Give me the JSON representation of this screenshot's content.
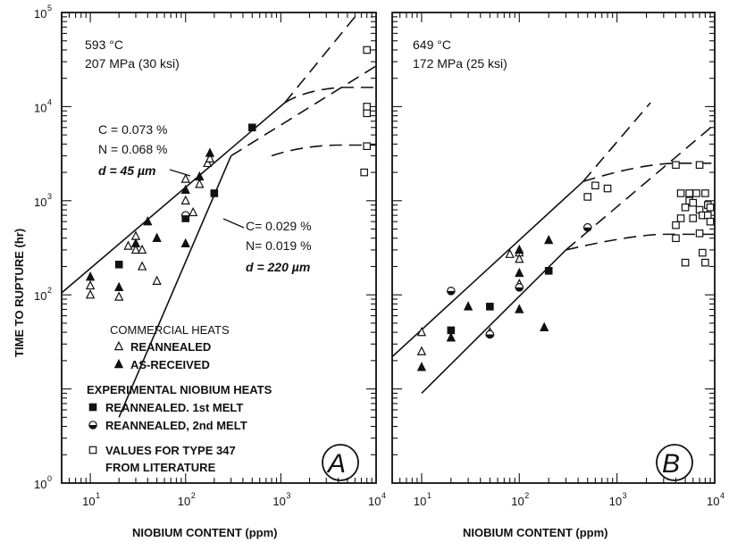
{
  "chart_data": [
    {
      "type": "scatter",
      "panel": "A",
      "panel_letter": "A",
      "condition_temp": "593 °C",
      "condition_stress": "207 MPa (30 ksi)",
      "xlabel": "NIOBIUM CONTENT (ppm)",
      "ylabel": "TIME TO RUPTURE (hr)",
      "x_scale": "log",
      "y_scale": "log",
      "xlim": [
        5,
        10000
      ],
      "ylim": [
        1,
        100000
      ],
      "x_ticks": [
        {
          "base": "10",
          "exp": "1",
          "value": 10
        },
        {
          "base": "10",
          "exp": "2",
          "value": 100
        },
        {
          "base": "10",
          "exp": "3",
          "value": 1000
        },
        {
          "base": "10",
          "exp": "4",
          "value": 10000
        }
      ],
      "y_ticks": [
        {
          "base": "10",
          "exp": "0",
          "value": 1
        },
        {
          "base": "10",
          "exp": "2",
          "value": 100
        },
        {
          "base": "10",
          "exp": "3",
          "value": 1000
        },
        {
          "base": "10",
          "exp": "4",
          "value": 10000
        },
        {
          "base": "10",
          "exp": "5",
          "value": 100000
        }
      ],
      "annotation_upper": [
        "C = 0.073 %",
        "N = 0.068 %",
        "d = 45 µm"
      ],
      "annotation_lower": [
        "C= 0.029 %",
        "N= 0.019 %",
        "d = 220 µm"
      ],
      "trend_lines": [
        {
          "solid": [
            [
              5,
              105
            ],
            [
              1100,
              11000
            ]
          ],
          "dashed": [
            [
              1100,
              11000
            ],
            [
              6000,
              90000
            ]
          ],
          "dashed_plateau": [
            [
              1100,
              11000
            ],
            [
              1800,
              15000
            ],
            [
              10000,
              16000
            ]
          ]
        },
        {
          "dashed": [
            [
              300,
              3000
            ],
            [
              10000,
              27000
            ]
          ],
          "solid": [
            [
              20,
              5
            ],
            [
              300,
              3000
            ]
          ],
          "dashed_plateau": [
            [
              800,
              3000
            ],
            [
              1600,
              3800
            ],
            [
              10000,
              3900
            ]
          ]
        }
      ],
      "series": [
        {
          "name": "REANNEALED",
          "group": "COMMERCIAL HEATS",
          "marker": "open-triangle",
          "points": [
            [
              10,
              125
            ],
            [
              10,
              100
            ],
            [
              20,
              95
            ],
            [
              25,
              330
            ],
            [
              30,
              420
            ],
            [
              30,
              300
            ],
            [
              35,
              200
            ],
            [
              35,
              300
            ],
            [
              50,
              140
            ],
            [
              100,
              1000
            ],
            [
              100,
              1700
            ],
            [
              120,
              750
            ],
            [
              140,
              1500
            ],
            [
              170,
              2500
            ],
            [
              180,
              2800
            ]
          ]
        },
        {
          "name": "AS-RECEIVED",
          "group": "COMMERCIAL HEATS",
          "marker": "filled-triangle",
          "points": [
            [
              10,
              155
            ],
            [
              20,
              120
            ],
            [
              30,
              350
            ],
            [
              40,
              600
            ],
            [
              50,
              400
            ],
            [
              100,
              350
            ],
            [
              100,
              1300
            ],
            [
              140,
              1800
            ],
            [
              180,
              3200
            ]
          ]
        },
        {
          "name": "REANNEALED. 1st MELT",
          "group": "EXPERIMENTAL NIOBIUM HEATS",
          "marker": "filled-square",
          "points": [
            [
              20,
              210
            ],
            [
              100,
              650
            ],
            [
              200,
              1200
            ],
            [
              500,
              6000
            ]
          ]
        },
        {
          "name": "REANNEALED, 2nd MELT",
          "group": "EXPERIMENTAL NIOBIUM HEATS",
          "marker": "half-circle",
          "points": [
            [
              100,
              700
            ]
          ]
        },
        {
          "name": "VALUES FOR TYPE 347 FROM LITERATURE",
          "group": "",
          "marker": "open-square",
          "points": [
            [
              8000,
              40000
            ],
            [
              8000,
              10000
            ],
            [
              8000,
              8500
            ],
            [
              8000,
              3800
            ],
            [
              7500,
              2000
            ]
          ]
        }
      ]
    },
    {
      "type": "scatter",
      "panel": "B",
      "panel_letter": "B",
      "condition_temp": "649 °C",
      "condition_stress": "172 MPa (25 ksi)",
      "xlabel": "NIOBIUM CONTENT (ppm)",
      "x_scale": "log",
      "y_scale": "log",
      "xlim": [
        5,
        10000
      ],
      "ylim": [
        1,
        100000
      ],
      "x_ticks": [
        {
          "base": "10",
          "exp": "1",
          "value": 10
        },
        {
          "base": "10",
          "exp": "2",
          "value": 100
        },
        {
          "base": "10",
          "exp": "3",
          "value": 1000
        },
        {
          "base": "10",
          "exp": "4",
          "value": 10000
        }
      ],
      "trend_lines": [
        {
          "solid": [
            [
              5,
              22
            ],
            [
              450,
              1600
            ]
          ],
          "dashed": [
            [
              450,
              1600
            ],
            [
              2200,
              11000
            ]
          ],
          "dashed_plateau": [
            [
              450,
              1600
            ],
            [
              1800,
              2500
            ],
            [
              10000,
              2500
            ]
          ]
        },
        {
          "solid": [
            [
              10,
              9
            ],
            [
              300,
              300
            ]
          ],
          "dashed": [
            [
              300,
              300
            ],
            [
              10000,
              6500
            ]
          ],
          "dashed_plateau": [
            [
              300,
              300
            ],
            [
              1200,
              420
            ],
            [
              10000,
              440
            ]
          ]
        }
      ],
      "series": [
        {
          "name": "REANNEALED",
          "marker": "open-triangle",
          "points": [
            [
              10,
              25
            ],
            [
              10,
              40
            ],
            [
              50,
              40
            ],
            [
              80,
              270
            ],
            [
              100,
              280
            ],
            [
              100,
              240
            ],
            [
              100,
              130
            ]
          ]
        },
        {
          "name": "AS-RECEIVED",
          "marker": "filled-triangle",
          "points": [
            [
              10,
              17
            ],
            [
              20,
              35
            ],
            [
              30,
              75
            ],
            [
              100,
              70
            ],
            [
              100,
              170
            ],
            [
              100,
              300
            ],
            [
              200,
              380
            ],
            [
              180,
              45
            ]
          ]
        },
        {
          "name": "REANNEALED. 1st MELT",
          "marker": "filled-square",
          "points": [
            [
              20,
              42
            ],
            [
              50,
              75
            ],
            [
              200,
              180
            ]
          ]
        },
        {
          "name": "REANNEALED, 2nd MELT",
          "marker": "half-circle",
          "points": [
            [
              20,
              110
            ],
            [
              50,
              38
            ],
            [
              100,
              120
            ],
            [
              500,
              520
            ]
          ]
        },
        {
          "name": "VALUES FOR TYPE 347 FROM LITERATURE",
          "marker": "open-square",
          "points": [
            [
              500,
              1100
            ],
            [
              600,
              1450
            ],
            [
              800,
              1350
            ],
            [
              4000,
              2400
            ],
            [
              7000,
              2400
            ],
            [
              4000,
              550
            ],
            [
              4000,
              400
            ],
            [
              4500,
              1200
            ],
            [
              4500,
              650
            ],
            [
              5000,
              850
            ],
            [
              5000,
              220
            ],
            [
              5500,
              1000
            ],
            [
              5500,
              1200
            ],
            [
              6000,
              950
            ],
            [
              6000,
              650
            ],
            [
              6500,
              1200
            ],
            [
              7000,
              800
            ],
            [
              7000,
              450
            ],
            [
              7500,
              700
            ],
            [
              7500,
              280
            ],
            [
              8000,
              220
            ],
            [
              8000,
              1200
            ],
            [
              8500,
              700
            ],
            [
              8500,
              900
            ],
            [
              9000,
              600
            ],
            [
              9000,
              850
            ]
          ]
        }
      ]
    }
  ]
}
